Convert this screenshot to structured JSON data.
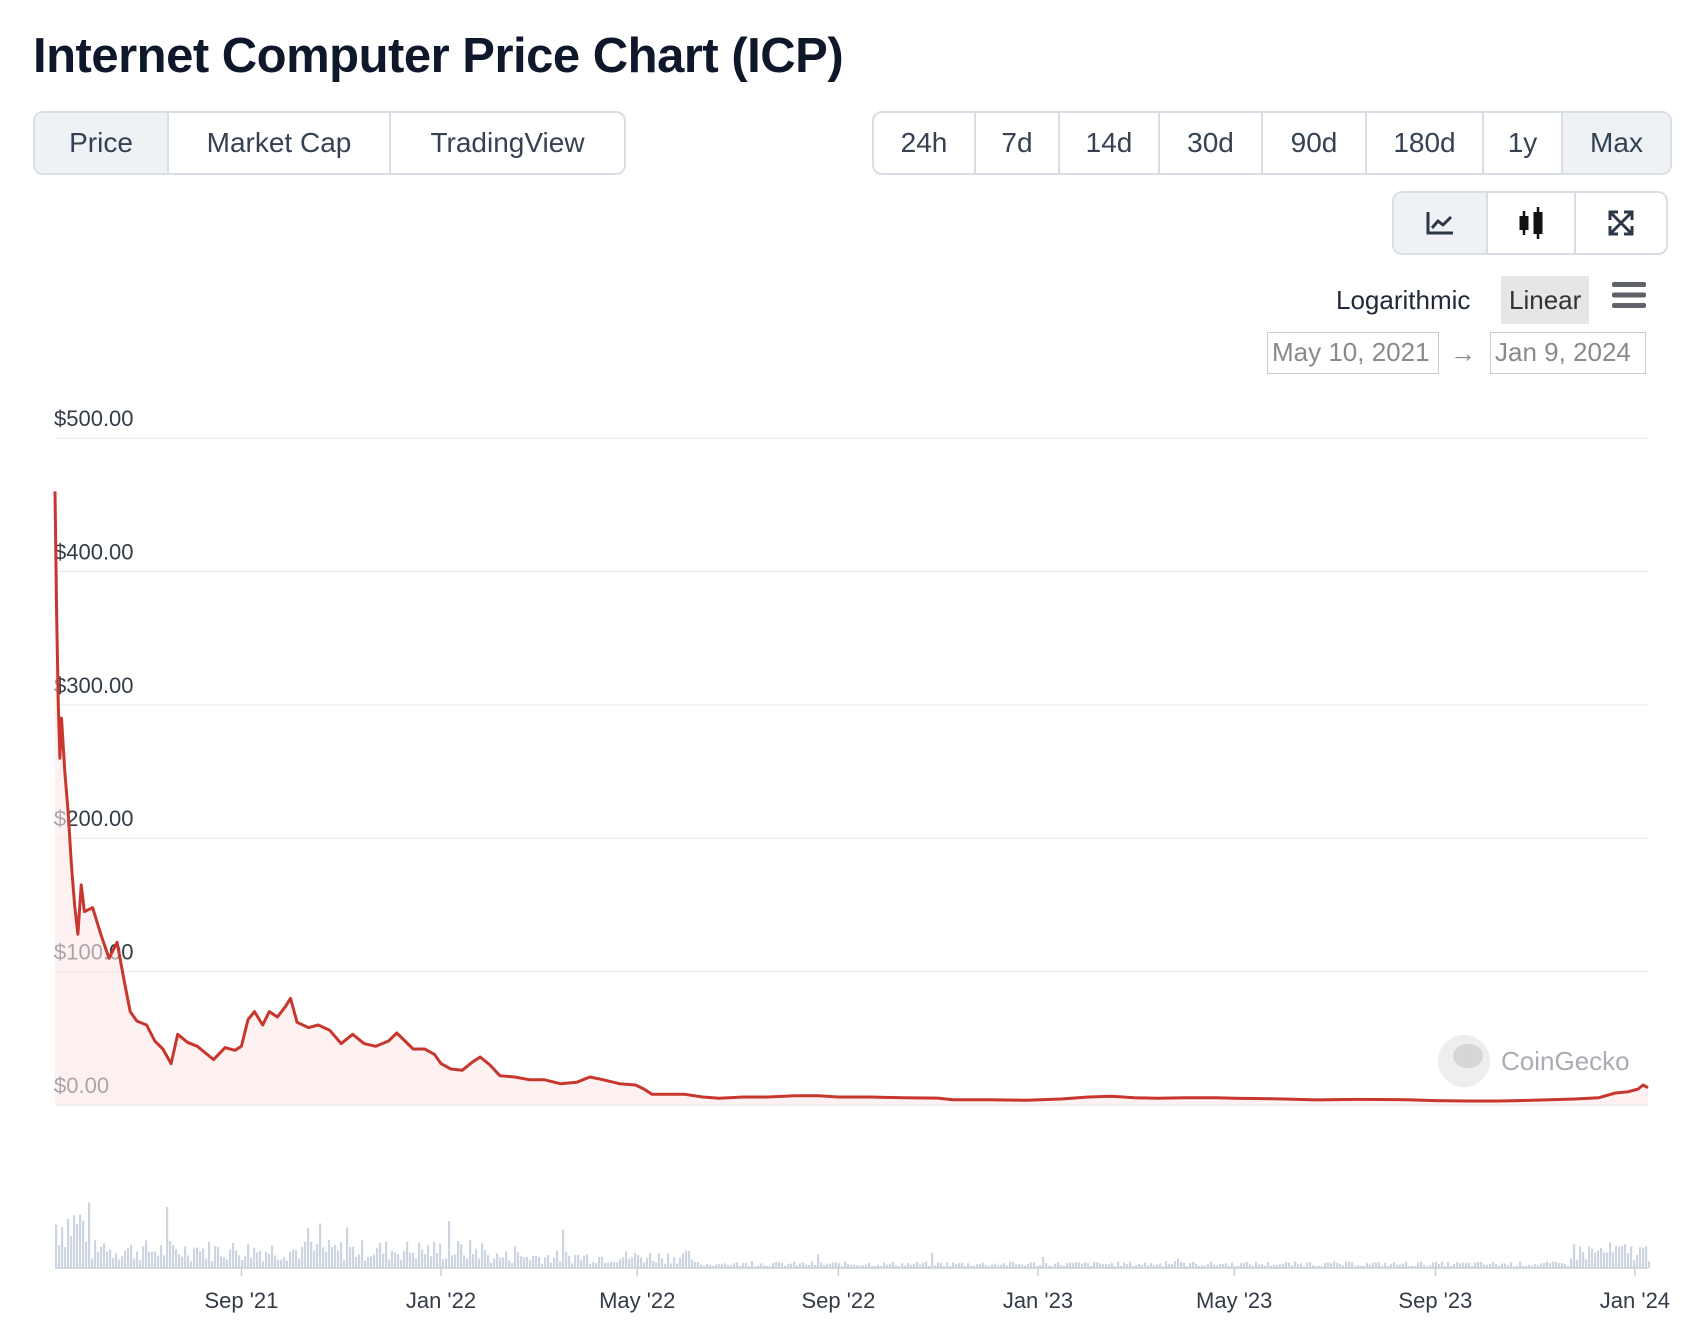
{
  "title": "Internet Computer Price Chart (ICP)",
  "view_tabs": [
    {
      "label": "Price",
      "active": true
    },
    {
      "label": "Market Cap",
      "active": false
    },
    {
      "label": "TradingView",
      "active": false
    }
  ],
  "range_tabs": [
    {
      "label": "24h",
      "active": false
    },
    {
      "label": "7d",
      "active": false
    },
    {
      "label": "14d",
      "active": false
    },
    {
      "label": "30d",
      "active": false
    },
    {
      "label": "90d",
      "active": false
    },
    {
      "label": "180d",
      "active": false
    },
    {
      "label": "1y",
      "active": false
    },
    {
      "label": "Max",
      "active": true
    }
  ],
  "chart_tools": [
    {
      "icon": "line-chart-icon",
      "active": true
    },
    {
      "icon": "candlestick-icon",
      "active": false
    },
    {
      "icon": "fullscreen-icon",
      "active": false
    }
  ],
  "scale": {
    "logarithmic": "Logarithmic",
    "linear": "Linear",
    "selected": "Linear"
  },
  "date_range": {
    "from": "May 10, 2021",
    "arrow": "→",
    "to": "Jan 9, 2024"
  },
  "watermark": "CoinGecko",
  "colors": {
    "line": "#c8372d",
    "area": "#fbeae8",
    "volume": "#cdd5e0",
    "grid": "#ececec"
  },
  "chart_data": {
    "type": "line",
    "title": "",
    "xlabel": "",
    "ylabel": "",
    "ylim": [
      0,
      500
    ],
    "y_ticks": [
      "$0.00",
      "$100.00",
      "$200.00",
      "$300.00",
      "$400.00",
      "$500.00"
    ],
    "y_tick_values": [
      0,
      100,
      200,
      300,
      400,
      500
    ],
    "x_ticks": [
      "Sep '21",
      "Jan '22",
      "May '22",
      "Sep '22",
      "Jan '23",
      "May '23",
      "Sep '23",
      "Jan '24"
    ],
    "x_tick_dates": [
      "2021-09-01",
      "2022-01-01",
      "2022-05-01",
      "2022-09-01",
      "2023-01-01",
      "2023-05-01",
      "2023-09-01",
      "2024-01-01"
    ],
    "x_range": [
      "2021-05-10",
      "2024-01-09"
    ],
    "grid": true,
    "legend": "none",
    "series": [
      {
        "points": [
          [
            "2021-05-10",
            460
          ],
          [
            "2021-05-11",
            370
          ],
          [
            "2021-05-12",
            300
          ],
          [
            "2021-05-13",
            260
          ],
          [
            "2021-05-14",
            290
          ],
          [
            "2021-05-16",
            250
          ],
          [
            "2021-05-18",
            220
          ],
          [
            "2021-05-20",
            180
          ],
          [
            "2021-05-22",
            150
          ],
          [
            "2021-05-24",
            128
          ],
          [
            "2021-05-26",
            165
          ],
          [
            "2021-05-28",
            145
          ],
          [
            "2021-06-02",
            148
          ],
          [
            "2021-06-07",
            128
          ],
          [
            "2021-06-12",
            110
          ],
          [
            "2021-06-17",
            122
          ],
          [
            "2021-06-21",
            95
          ],
          [
            "2021-06-25",
            70
          ],
          [
            "2021-06-29",
            63
          ],
          [
            "2021-07-05",
            60
          ],
          [
            "2021-07-10",
            48
          ],
          [
            "2021-07-15",
            42
          ],
          [
            "2021-07-20",
            31
          ],
          [
            "2021-07-24",
            53
          ],
          [
            "2021-07-30",
            47
          ],
          [
            "2021-08-05",
            44
          ],
          [
            "2021-08-15",
            34
          ],
          [
            "2021-08-22",
            43
          ],
          [
            "2021-08-28",
            41
          ],
          [
            "2021-09-01",
            44
          ],
          [
            "2021-09-05",
            64
          ],
          [
            "2021-09-09",
            70
          ],
          [
            "2021-09-14",
            60
          ],
          [
            "2021-09-18",
            70
          ],
          [
            "2021-09-23",
            66
          ],
          [
            "2021-09-28",
            74
          ],
          [
            "2021-10-01",
            80
          ],
          [
            "2021-10-05",
            62
          ],
          [
            "2021-10-12",
            58
          ],
          [
            "2021-10-18",
            60
          ],
          [
            "2021-10-25",
            56
          ],
          [
            "2021-11-01",
            46
          ],
          [
            "2021-11-08",
            53
          ],
          [
            "2021-11-15",
            46
          ],
          [
            "2021-11-22",
            44
          ],
          [
            "2021-11-30",
            48
          ],
          [
            "2021-12-05",
            54
          ],
          [
            "2021-12-10",
            48
          ],
          [
            "2021-12-15",
            42
          ],
          [
            "2021-12-22",
            42
          ],
          [
            "2021-12-28",
            38
          ],
          [
            "2022-01-01",
            31
          ],
          [
            "2022-01-07",
            27
          ],
          [
            "2022-01-14",
            26
          ],
          [
            "2022-01-20",
            32
          ],
          [
            "2022-01-25",
            36
          ],
          [
            "2022-01-31",
            30
          ],
          [
            "2022-02-06",
            22
          ],
          [
            "2022-02-15",
            21
          ],
          [
            "2022-02-24",
            19
          ],
          [
            "2022-03-05",
            19
          ],
          [
            "2022-03-15",
            16
          ],
          [
            "2022-03-25",
            17
          ],
          [
            "2022-04-02",
            21
          ],
          [
            "2022-04-10",
            19
          ],
          [
            "2022-04-20",
            16
          ],
          [
            "2022-04-30",
            15
          ],
          [
            "2022-05-05",
            12
          ],
          [
            "2022-05-10",
            8
          ],
          [
            "2022-05-20",
            8
          ],
          [
            "2022-05-30",
            8
          ],
          [
            "2022-06-10",
            6
          ],
          [
            "2022-06-20",
            5
          ],
          [
            "2022-07-05",
            6
          ],
          [
            "2022-07-20",
            6
          ],
          [
            "2022-08-05",
            7
          ],
          [
            "2022-08-20",
            7
          ],
          [
            "2022-09-01",
            6
          ],
          [
            "2022-09-20",
            6
          ],
          [
            "2022-10-10",
            5.5
          ],
          [
            "2022-11-01",
            5.2
          ],
          [
            "2022-11-10",
            4
          ],
          [
            "2022-12-01",
            4
          ],
          [
            "2022-12-25",
            3.5
          ],
          [
            "2023-01-15",
            4.5
          ],
          [
            "2023-02-01",
            6
          ],
          [
            "2023-02-15",
            6.5
          ],
          [
            "2023-03-01",
            5.5
          ],
          [
            "2023-03-15",
            5
          ],
          [
            "2023-04-01",
            5.5
          ],
          [
            "2023-04-20",
            5.5
          ],
          [
            "2023-05-01",
            5
          ],
          [
            "2023-06-01",
            4.5
          ],
          [
            "2023-06-20",
            3.8
          ],
          [
            "2023-07-15",
            4.2
          ],
          [
            "2023-08-15",
            4
          ],
          [
            "2023-09-01",
            3.3
          ],
          [
            "2023-09-20",
            3.0
          ],
          [
            "2023-10-10",
            3.0
          ],
          [
            "2023-10-25",
            3.4
          ],
          [
            "2023-11-10",
            4.0
          ],
          [
            "2023-11-25",
            4.5
          ],
          [
            "2023-12-10",
            5.5
          ],
          [
            "2023-12-20",
            9
          ],
          [
            "2023-12-28",
            10
          ],
          [
            "2024-01-03",
            12
          ],
          [
            "2024-01-06",
            15
          ],
          [
            "2024-01-09",
            13
          ]
        ]
      }
    ]
  }
}
